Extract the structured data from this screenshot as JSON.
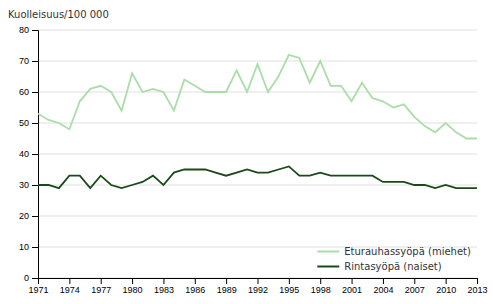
{
  "chart_data": {
    "type": "line",
    "ylabel": "Kuolleisuus/100 000",
    "x": [
      1971,
      1972,
      1973,
      1974,
      1975,
      1976,
      1977,
      1978,
      1979,
      1980,
      1981,
      1982,
      1983,
      1984,
      1985,
      1986,
      1987,
      1988,
      1989,
      1990,
      1991,
      1992,
      1993,
      1994,
      1995,
      1996,
      1997,
      1998,
      1999,
      2000,
      2001,
      2002,
      2003,
      2004,
      2005,
      2006,
      2007,
      2008,
      2009,
      2010,
      2011,
      2012,
      2013
    ],
    "series": [
      {
        "name": "Eturauhassyöpä (miehet)",
        "color": "#aaddaa",
        "values": [
          53,
          51,
          50,
          48,
          57,
          61,
          62,
          60,
          54,
          66,
          60,
          61,
          60,
          54,
          64,
          62,
          60,
          60,
          60,
          67,
          60,
          69,
          60,
          65,
          72,
          71,
          63,
          70,
          62,
          62,
          57,
          63,
          58,
          57,
          55,
          56,
          52,
          49,
          47,
          50,
          47,
          45,
          45
        ]
      },
      {
        "name": "Rintasyöpä (naiset)",
        "color": "#1a4a1a",
        "values": [
          30,
          30,
          29,
          33,
          33,
          29,
          33,
          30,
          29,
          30,
          31,
          33,
          30,
          34,
          35,
          35,
          35,
          34,
          33,
          34,
          35,
          34,
          34,
          35,
          36,
          33,
          33,
          34,
          33,
          33,
          33,
          33,
          33,
          31,
          31,
          31,
          30,
          30,
          29,
          30,
          29,
          29,
          29
        ]
      }
    ],
    "xlim": [
      1971,
      2013
    ],
    "xticks": [
      1971,
      1974,
      1977,
      1980,
      1983,
      1986,
      1989,
      1992,
      1995,
      1998,
      2001,
      2004,
      2007,
      2010,
      2013
    ],
    "ylim": [
      0,
      80
    ],
    "yticks": [
      0,
      10,
      20,
      30,
      40,
      50,
      60,
      70,
      80
    ],
    "grid": true,
    "legend": "lower right"
  }
}
